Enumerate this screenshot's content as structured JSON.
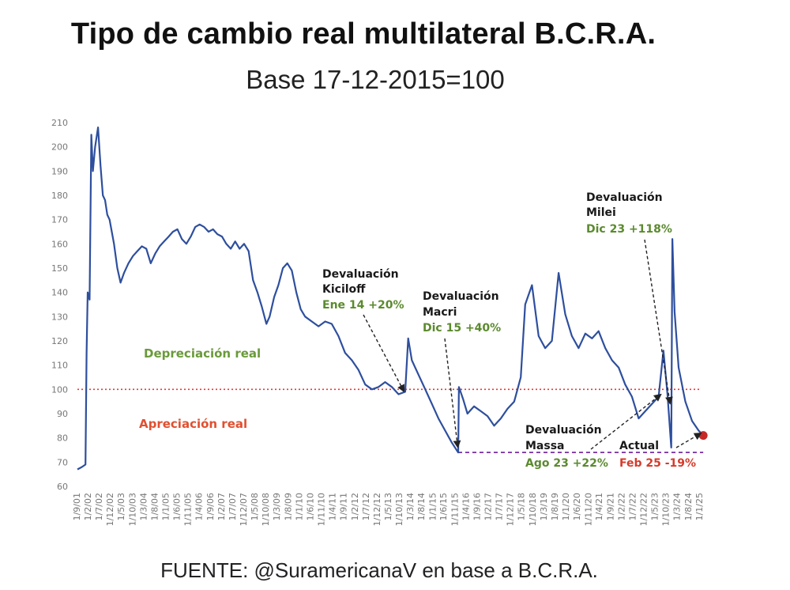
{
  "chart_data": {
    "type": "line",
    "title": "Tipo de cambio real multilateral B.C.R.A.",
    "subtitle": "Base 17-12-2015=100",
    "source": "FUENTE: @SuramericanaV en base a B.C.R.A.",
    "xlabel": "",
    "ylabel": "",
    "ylim": [
      60,
      210
    ],
    "yticks": [
      60,
      70,
      80,
      90,
      100,
      110,
      120,
      130,
      140,
      150,
      160,
      170,
      180,
      190,
      200,
      210
    ],
    "xlim": [
      "2001-09-01",
      "2025-01-01"
    ],
    "xticks": [
      "1/9/01",
      "1/2/02",
      "1/7/02",
      "1/12/02",
      "1/5/03",
      "1/10/03",
      "1/3/04",
      "1/8/04",
      "1/1/05",
      "1/6/05",
      "1/11/05",
      "1/4/06",
      "1/9/06",
      "1/2/07",
      "1/7/07",
      "1/12/07",
      "1/5/08",
      "1/10/08",
      "1/3/09",
      "1/8/09",
      "1/1/10",
      "1/6/10",
      "1/11/10",
      "1/4/11",
      "1/9/11",
      "1/2/12",
      "1/7/12",
      "1/12/12",
      "1/5/13",
      "1/10/13",
      "1/3/14",
      "1/8/14",
      "1/1/15",
      "1/6/15",
      "1/11/15",
      "1/4/16",
      "1/9/16",
      "1/2/17",
      "1/7/17",
      "1/12/17",
      "1/5/18",
      "1/10/18",
      "1/3/19",
      "1/8/19",
      "1/1/20",
      "1/6/20",
      "1/11/20",
      "1/4/21",
      "1/9/21",
      "1/2/22",
      "1/7/22",
      "1/12/22",
      "1/5/23",
      "1/10/23",
      "1/3/24",
      "1/8/24",
      "1/1/25"
    ],
    "grid": false,
    "series": [
      {
        "name": "",
        "color": "#2e4f9e",
        "points": [
          [
            "2001-09-01",
            67
          ],
          [
            "2001-11-01",
            68
          ],
          [
            "2001-12-20",
            69
          ],
          [
            "2002-01-05",
            115
          ],
          [
            "2002-01-20",
            140
          ],
          [
            "2002-02-15",
            137
          ],
          [
            "2002-03-10",
            205
          ],
          [
            "2002-04-01",
            190
          ],
          [
            "2002-05-01",
            200
          ],
          [
            "2002-06-10",
            208
          ],
          [
            "2002-07-15",
            192
          ],
          [
            "2002-08-15",
            180
          ],
          [
            "2002-09-15",
            178
          ],
          [
            "2002-10-15",
            172
          ],
          [
            "2002-11-15",
            170
          ],
          [
            "2002-12-15",
            165
          ],
          [
            "2003-01-15",
            160
          ],
          [
            "2003-03-01",
            150
          ],
          [
            "2003-04-15",
            144
          ],
          [
            "2003-06-01",
            148
          ],
          [
            "2003-08-01",
            152
          ],
          [
            "2003-10-01",
            155
          ],
          [
            "2003-12-01",
            157
          ],
          [
            "2004-02-01",
            159
          ],
          [
            "2004-04-01",
            158
          ],
          [
            "2004-06-01",
            152
          ],
          [
            "2004-08-01",
            156
          ],
          [
            "2004-10-01",
            159
          ],
          [
            "2004-12-01",
            161
          ],
          [
            "2005-02-01",
            163
          ],
          [
            "2005-04-01",
            165
          ],
          [
            "2005-06-01",
            166
          ],
          [
            "2005-08-01",
            162
          ],
          [
            "2005-10-01",
            160
          ],
          [
            "2005-12-01",
            163
          ],
          [
            "2006-02-01",
            167
          ],
          [
            "2006-04-01",
            168
          ],
          [
            "2006-06-01",
            167
          ],
          [
            "2006-08-01",
            165
          ],
          [
            "2006-10-01",
            166
          ],
          [
            "2006-12-01",
            164
          ],
          [
            "2007-02-01",
            163
          ],
          [
            "2007-04-01",
            160
          ],
          [
            "2007-06-01",
            158
          ],
          [
            "2007-08-01",
            161
          ],
          [
            "2007-10-01",
            158
          ],
          [
            "2007-12-01",
            160
          ],
          [
            "2008-02-01",
            157
          ],
          [
            "2008-04-01",
            145
          ],
          [
            "2008-06-01",
            140
          ],
          [
            "2008-08-01",
            134
          ],
          [
            "2008-10-01",
            127
          ],
          [
            "2008-11-15",
            130
          ],
          [
            "2009-01-15",
            138
          ],
          [
            "2009-03-15",
            143
          ],
          [
            "2009-05-15",
            150
          ],
          [
            "2009-07-15",
            152
          ],
          [
            "2009-09-15",
            149
          ],
          [
            "2009-11-15",
            140
          ],
          [
            "2010-01-15",
            133
          ],
          [
            "2010-03-15",
            130
          ],
          [
            "2010-06-15",
            128
          ],
          [
            "2010-09-15",
            126
          ],
          [
            "2010-12-15",
            128
          ],
          [
            "2011-03-15",
            127
          ],
          [
            "2011-06-15",
            122
          ],
          [
            "2011-09-15",
            115
          ],
          [
            "2011-12-15",
            112
          ],
          [
            "2012-03-15",
            108
          ],
          [
            "2012-06-15",
            102
          ],
          [
            "2012-09-15",
            100
          ],
          [
            "2012-12-15",
            101
          ],
          [
            "2013-03-15",
            103
          ],
          [
            "2013-06-15",
            101
          ],
          [
            "2013-09-15",
            98
          ],
          [
            "2013-12-15",
            99
          ],
          [
            "2014-01-25",
            121
          ],
          [
            "2014-03-15",
            112
          ],
          [
            "2014-06-15",
            106
          ],
          [
            "2014-09-15",
            100
          ],
          [
            "2014-12-15",
            94
          ],
          [
            "2015-03-15",
            88
          ],
          [
            "2015-06-15",
            83
          ],
          [
            "2015-09-15",
            78
          ],
          [
            "2015-12-10",
            74
          ],
          [
            "2015-12-20",
            101
          ],
          [
            "2016-02-15",
            96
          ],
          [
            "2016-04-15",
            90
          ],
          [
            "2016-07-15",
            93
          ],
          [
            "2016-10-15",
            91
          ],
          [
            "2017-01-15",
            89
          ],
          [
            "2017-04-15",
            85
          ],
          [
            "2017-07-15",
            88
          ],
          [
            "2017-10-15",
            92
          ],
          [
            "2018-01-15",
            95
          ],
          [
            "2018-04-15",
            105
          ],
          [
            "2018-06-15",
            135
          ],
          [
            "2018-09-15",
            143
          ],
          [
            "2018-12-15",
            122
          ],
          [
            "2019-03-15",
            117
          ],
          [
            "2019-06-15",
            120
          ],
          [
            "2019-09-15",
            148
          ],
          [
            "2019-12-15",
            131
          ],
          [
            "2020-03-15",
            122
          ],
          [
            "2020-06-15",
            117
          ],
          [
            "2020-09-15",
            123
          ],
          [
            "2020-12-15",
            121
          ],
          [
            "2021-03-15",
            124
          ],
          [
            "2021-06-15",
            117
          ],
          [
            "2021-09-15",
            112
          ],
          [
            "2021-12-15",
            109
          ],
          [
            "2022-03-15",
            102
          ],
          [
            "2022-06-15",
            97
          ],
          [
            "2022-09-15",
            88
          ],
          [
            "2022-12-15",
            91
          ],
          [
            "2023-03-15",
            94
          ],
          [
            "2023-06-15",
            97
          ],
          [
            "2023-08-20",
            116
          ],
          [
            "2023-10-15",
            98
          ],
          [
            "2023-12-05",
            76
          ],
          [
            "2023-12-20",
            162
          ],
          [
            "2024-01-20",
            132
          ],
          [
            "2024-03-15",
            109
          ],
          [
            "2024-06-15",
            95
          ],
          [
            "2024-09-15",
            87
          ],
          [
            "2024-12-15",
            83
          ],
          [
            "2025-02-15",
            81
          ]
        ]
      }
    ],
    "reference_lines": [
      {
        "y": 100,
        "color": "#e53935",
        "style": "dotted"
      },
      {
        "y": 74,
        "from": "2015-12-10",
        "to": "2025-02-15",
        "color": "#6a1b9a",
        "style": "dashed"
      }
    ],
    "end_marker": {
      "x": "2025-02-15",
      "y": 81,
      "color": "#c62828"
    },
    "zone_labels": [
      {
        "text": "Depreciación real",
        "color": "#6a9a3a"
      },
      {
        "text": "Apreciación real",
        "color": "#e05030"
      }
    ],
    "annotations": [
      {
        "line1": "Devaluación",
        "line2": "Kiciloff",
        "detail": "Ene 14 +20%",
        "detail_color": "#5b8a2e"
      },
      {
        "line1": "Devaluación",
        "line2": "Macri",
        "detail": "Dic 15 +40%",
        "detail_color": "#5b8a2e"
      },
      {
        "line1": "Devaluación",
        "line2": "Massa",
        "detail": "Ago 23 +22%",
        "detail_color": "#5b8a2e"
      },
      {
        "line1": "Devaluación",
        "line2": "Milei",
        "detail": "Dic 23 +118%",
        "detail_color": "#5b8a2e"
      },
      {
        "line1": "Actual",
        "line2": "",
        "detail": "Feb 25 -19%",
        "detail_color": "#d63a2a"
      }
    ]
  }
}
